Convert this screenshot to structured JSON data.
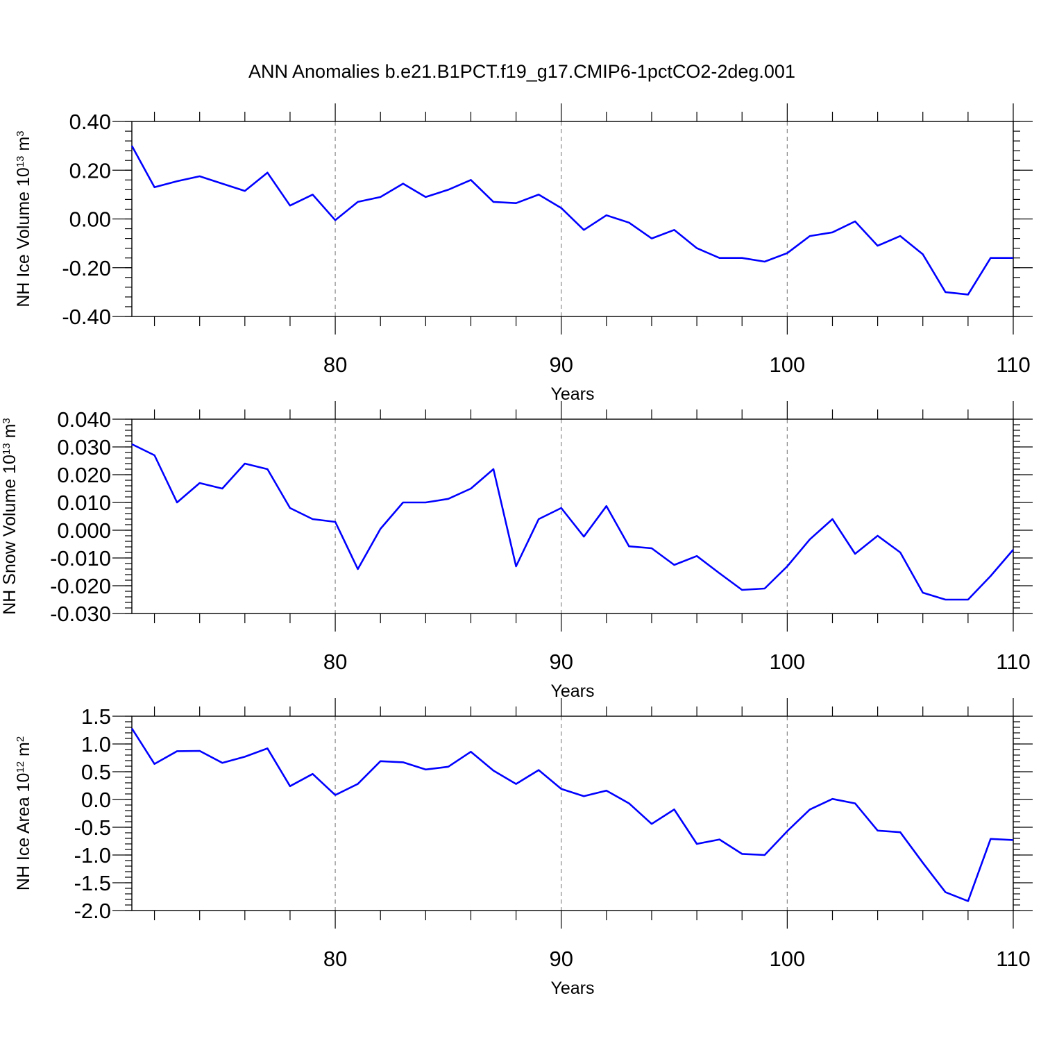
{
  "title": "ANN Anomalies b.e21.B1PCT.f19_g17.CMIP6-1pctCO2-2deg.001",
  "line_color": "#0000ff",
  "chart_data": [
    {
      "type": "line",
      "xlabel": "Years",
      "ylabel": {
        "main": "NH Ice Volume 10",
        "sup": "13",
        "unit": " m",
        "unit_sup": "3"
      },
      "xlim": [
        71,
        110
      ],
      "ylim": [
        -0.4,
        0.4
      ],
      "x_ticks": [
        80,
        90,
        100,
        110
      ],
      "y_ticks": [
        -0.4,
        -0.2,
        0.0,
        0.2,
        0.4
      ],
      "y_tick_labels": [
        "-0.40",
        "-0.20",
        "0.00",
        "0.20",
        "0.40"
      ],
      "y_minor_step": 0.04,
      "x_gridlines": [
        80,
        90,
        100
      ],
      "x": [
        71,
        72,
        73,
        74,
        75,
        76,
        77,
        78,
        79,
        80,
        81,
        82,
        83,
        84,
        85,
        86,
        87,
        88,
        89,
        90,
        91,
        92,
        93,
        94,
        95,
        96,
        97,
        98,
        99,
        100,
        101,
        102,
        103,
        104,
        105,
        106,
        107,
        108,
        109,
        110
      ],
      "series": [
        {
          "values": [
            0.3,
            0.13,
            0.155,
            0.175,
            0.145,
            0.115,
            0.19,
            0.055,
            0.1,
            -0.005,
            0.07,
            0.09,
            0.145,
            0.09,
            0.12,
            0.16,
            0.07,
            0.065,
            0.1,
            0.045,
            -0.045,
            0.015,
            -0.015,
            -0.08,
            -0.045,
            -0.12,
            -0.16,
            -0.16,
            -0.175,
            -0.14,
            -0.07,
            -0.055,
            -0.01,
            -0.11,
            -0.07,
            -0.145,
            -0.3,
            -0.31,
            -0.16,
            -0.16
          ]
        }
      ]
    },
    {
      "type": "line",
      "xlabel": "Years",
      "ylabel": {
        "main": "NH Snow Volume 10",
        "sup": "13",
        "unit": " m",
        "unit_sup": "3"
      },
      "xlim": [
        71,
        110
      ],
      "ylim": [
        -0.03,
        0.04
      ],
      "x_ticks": [
        80,
        90,
        100,
        110
      ],
      "y_ticks": [
        -0.03,
        -0.02,
        -0.01,
        0.0,
        0.01,
        0.02,
        0.03,
        0.04
      ],
      "y_tick_labels": [
        "-0.030",
        "-0.020",
        "-0.010",
        "0.000",
        "0.010",
        "0.020",
        "0.030",
        "0.040"
      ],
      "y_minor_step": 0.002,
      "x_gridlines": [
        80,
        90,
        100
      ],
      "x": [
        71,
        72,
        73,
        74,
        75,
        76,
        77,
        78,
        79,
        80,
        81,
        82,
        83,
        84,
        85,
        86,
        87,
        88,
        89,
        90,
        91,
        92,
        93,
        94,
        95,
        96,
        97,
        98,
        99,
        100,
        101,
        102,
        103,
        104,
        105,
        106,
        107,
        108,
        109,
        110
      ],
      "series": [
        {
          "values": [
            0.031,
            0.027,
            0.01,
            0.017,
            0.015,
            0.024,
            0.022,
            0.008,
            0.004,
            0.003,
            -0.014,
            0.0005,
            0.01,
            0.01,
            0.0113,
            0.015,
            0.022,
            -0.013,
            0.004,
            0.008,
            -0.0023,
            0.0087,
            -0.0058,
            -0.0065,
            -0.0125,
            -0.0093,
            -0.0155,
            -0.0215,
            -0.021,
            -0.013,
            -0.0033,
            0.004,
            -0.0085,
            -0.002,
            -0.008,
            -0.0225,
            -0.025,
            -0.025,
            -0.0165,
            -0.007
          ]
        }
      ]
    },
    {
      "type": "line",
      "xlabel": "Years",
      "ylabel": {
        "main": "NH Ice Area 10",
        "sup": "12",
        "unit": " m",
        "unit_sup": "2"
      },
      "xlim": [
        71,
        110
      ],
      "ylim": [
        -2.0,
        1.5
      ],
      "x_ticks": [
        80,
        90,
        100,
        110
      ],
      "y_ticks": [
        -2.0,
        -1.5,
        -1.0,
        -0.5,
        0.0,
        0.5,
        1.0,
        1.5
      ],
      "y_tick_labels": [
        "-2.0",
        "-1.5",
        "-1.0",
        "-0.5",
        "0.0",
        "0.5",
        "1.0",
        "1.5"
      ],
      "y_minor_step": 0.1,
      "x_gridlines": [
        80,
        90,
        100
      ],
      "x": [
        71,
        72,
        73,
        74,
        75,
        76,
        77,
        78,
        79,
        80,
        81,
        82,
        83,
        84,
        85,
        86,
        87,
        88,
        89,
        90,
        91,
        92,
        93,
        94,
        95,
        96,
        97,
        98,
        99,
        100,
        101,
        102,
        103,
        104,
        105,
        106,
        107,
        108,
        109,
        110
      ],
      "series": [
        {
          "values": [
            1.28,
            0.64,
            0.87,
            0.875,
            0.66,
            0.77,
            0.92,
            0.24,
            0.46,
            0.08,
            0.28,
            0.69,
            0.67,
            0.54,
            0.59,
            0.86,
            0.52,
            0.28,
            0.53,
            0.19,
            0.06,
            0.16,
            -0.07,
            -0.44,
            -0.18,
            -0.8,
            -0.72,
            -0.98,
            -1.0,
            -0.57,
            -0.18,
            0.01,
            -0.07,
            -0.56,
            -0.59,
            -1.14,
            -1.67,
            -1.83,
            -0.71,
            -0.73
          ]
        }
      ]
    }
  ]
}
